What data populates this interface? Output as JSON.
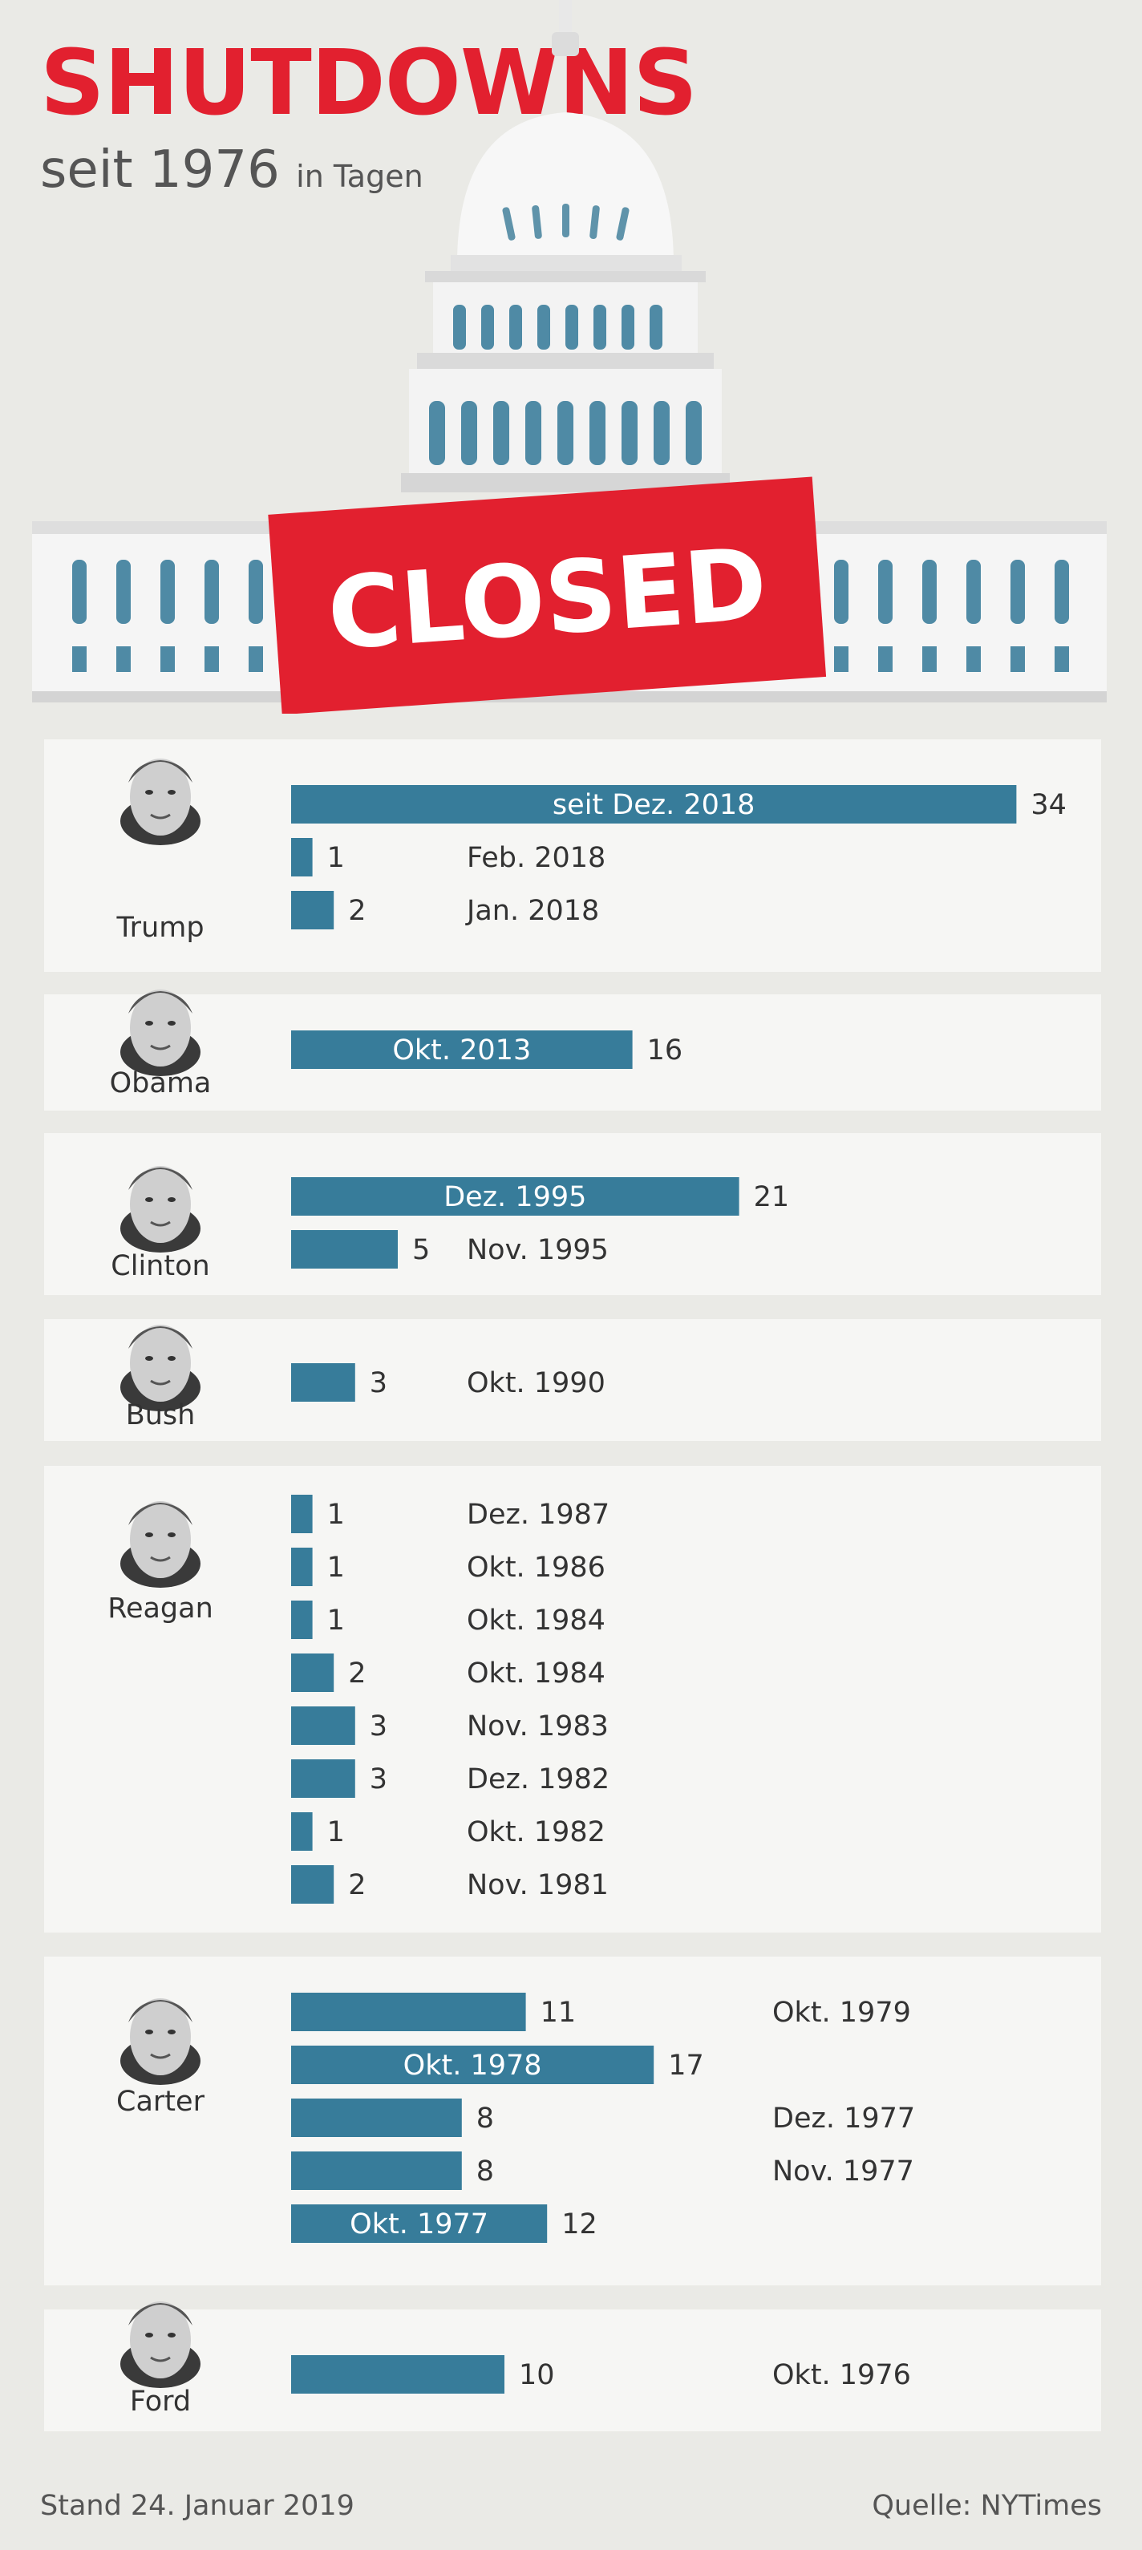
{
  "header": {
    "title": "SHUTDOWNS",
    "subtitle": "seit 1976",
    "unit": "in Tagen",
    "stamp": "CLOSED"
  },
  "colors": {
    "bar": "#377c9a",
    "title": "#e2202f",
    "stamp": "#e2202f",
    "panel": "#f6f6f4",
    "background": "#eaeae6"
  },
  "chart_data": {
    "type": "bar",
    "orientation": "horizontal",
    "title": "SHUTDOWNS",
    "subtitle": "seit 1976",
    "unit": "in Tagen",
    "groups": [
      {
        "president": "Trump",
        "portrait": "trump-portrait-icon",
        "bars": [
          {
            "days": 34,
            "label": "seit Dez. 2018"
          },
          {
            "days": 1,
            "label": "Feb. 2018"
          },
          {
            "days": 2,
            "label": "Jan. 2018"
          }
        ]
      },
      {
        "president": "Obama",
        "portrait": "obama-portrait-icon",
        "bars": [
          {
            "days": 16,
            "label": "Okt. 2013"
          }
        ]
      },
      {
        "president": "Clinton",
        "portrait": "clinton-portrait-icon",
        "bars": [
          {
            "days": 21,
            "label": "Dez. 1995"
          },
          {
            "days": 5,
            "label": "Nov. 1995"
          }
        ]
      },
      {
        "president": "Bush",
        "portrait": "bush-portrait-icon",
        "bars": [
          {
            "days": 3,
            "label": "Okt. 1990"
          }
        ]
      },
      {
        "president": "Reagan",
        "portrait": "reagan-portrait-icon",
        "bars": [
          {
            "days": 1,
            "label": "Dez. 1987"
          },
          {
            "days": 1,
            "label": "Okt. 1986"
          },
          {
            "days": 1,
            "label": "Okt. 1984"
          },
          {
            "days": 2,
            "label": "Okt. 1984"
          },
          {
            "days": 3,
            "label": "Nov. 1983"
          },
          {
            "days": 3,
            "label": "Dez. 1982"
          },
          {
            "days": 1,
            "label": "Okt. 1982"
          },
          {
            "days": 2,
            "label": "Nov. 1981"
          }
        ]
      },
      {
        "president": "Carter",
        "portrait": "carter-portrait-icon",
        "bars": [
          {
            "days": 11,
            "label": "Okt. 1979"
          },
          {
            "days": 17,
            "label": "Okt. 1978"
          },
          {
            "days": 8,
            "label": "Dez. 1977"
          },
          {
            "days": 8,
            "label": "Nov. 1977"
          },
          {
            "days": 12,
            "label": "Okt. 1977"
          }
        ]
      },
      {
        "president": "Ford",
        "portrait": "ford-portrait-icon",
        "bars": [
          {
            "days": 10,
            "label": "Okt. 1976"
          }
        ]
      }
    ]
  },
  "footer": {
    "date": "Stand 24. Januar 2019",
    "source": "Quelle: NYTimes"
  }
}
